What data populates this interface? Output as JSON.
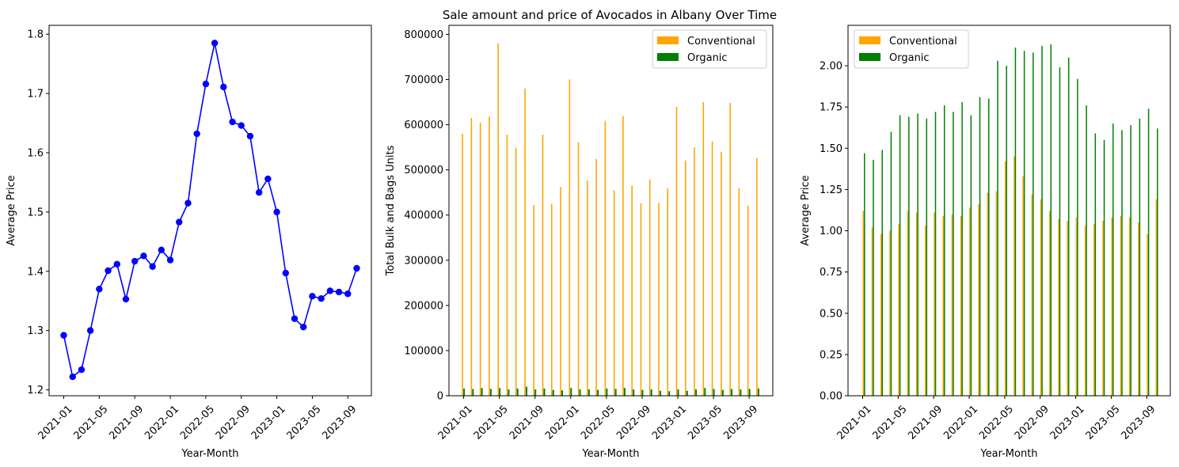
{
  "figure_title": "Sale amount and price of Avocados in Albany Over Time",
  "colors": {
    "line": "#0000ff",
    "conventional": "#ffa500",
    "organic": "#008000"
  },
  "chart_data": [
    {
      "type": "line",
      "title": "",
      "xlabel": "Year-Month",
      "ylabel": "Average Price",
      "ylim": [
        1.19,
        1.815
      ],
      "yticks": [
        "1.2",
        "1.3",
        "1.4",
        "1.5",
        "1.6",
        "1.7",
        "1.8"
      ],
      "xtick_labels": [
        "2021-01",
        "2021-05",
        "2021-09",
        "2022-01",
        "2022-05",
        "2022-09",
        "2023-01",
        "2023-05",
        "2023-09"
      ],
      "x": [
        "2021-01",
        "2021-02",
        "2021-03",
        "2021-04",
        "2021-05",
        "2021-06",
        "2021-07",
        "2021-08",
        "2021-09",
        "2021-10",
        "2021-11",
        "2021-12",
        "2022-01",
        "2022-02",
        "2022-03",
        "2022-04",
        "2022-05",
        "2022-06",
        "2022-07",
        "2022-08",
        "2022-09",
        "2022-10",
        "2022-11",
        "2022-12",
        "2023-01",
        "2023-02",
        "2023-03",
        "2023-04",
        "2023-05",
        "2023-06",
        "2023-07",
        "2023-08",
        "2023-09",
        "2023-10"
      ],
      "series": [
        {
          "name": "",
          "values": [
            1.292,
            1.222,
            1.234,
            1.3,
            1.37,
            1.401,
            1.412,
            1.353,
            1.417,
            1.426,
            1.408,
            1.436,
            1.419,
            1.483,
            1.515,
            1.632,
            1.716,
            1.785,
            1.711,
            1.652,
            1.646,
            1.628,
            1.533,
            1.556,
            1.5,
            1.397,
            1.32,
            1.306,
            1.358,
            1.354,
            1.367,
            1.365,
            1.362,
            1.405
          ]
        }
      ],
      "grid": false
    },
    {
      "type": "bar",
      "title": "",
      "xlabel": "Year-Month",
      "ylabel": "Total Bulk and Bags Units",
      "ylim": [
        0,
        820000
      ],
      "yticks": [
        "0",
        "100000",
        "200000",
        "300000",
        "400000",
        "500000",
        "600000",
        "700000",
        "800000"
      ],
      "xtick_labels": [
        "2021-01",
        "2021-05",
        "2021-09",
        "2022-01",
        "2022-05",
        "2022-09",
        "2023-01",
        "2023-05",
        "2023-09"
      ],
      "legend": "top-right",
      "series": [
        {
          "name": "Conventional",
          "values": [
            580000,
            615000,
            605000,
            618000,
            780000,
            578000,
            549000,
            680000,
            422000,
            578000,
            425000,
            462000,
            700000,
            561000,
            476000,
            524000,
            609000,
            455000,
            619000,
            465000,
            426000,
            479000,
            427000,
            459000,
            640000,
            521000,
            550000,
            650000,
            563000,
            540000,
            648000,
            459000,
            421000,
            526000
          ]
        },
        {
          "name": "Organic",
          "values": [
            16000,
            15000,
            17000,
            15000,
            17000,
            14000,
            16000,
            20000,
            14000,
            16000,
            13000,
            12000,
            17000,
            14000,
            14000,
            13000,
            16000,
            15000,
            17000,
            14000,
            13000,
            14000,
            11000,
            10000,
            14000,
            11000,
            14000,
            17000,
            15000,
            13000,
            15000,
            14000,
            15000,
            16000
          ]
        }
      ],
      "grid": false
    },
    {
      "type": "bar",
      "title": "",
      "xlabel": "Year-Month",
      "ylabel": "Average Price",
      "ylim": [
        0,
        2.245
      ],
      "yticks": [
        "0.00",
        "0.25",
        "0.50",
        "0.75",
        "1.00",
        "1.25",
        "1.50",
        "1.75",
        "2.00"
      ],
      "xtick_labels": [
        "2021-01",
        "2021-05",
        "2021-09",
        "2022-01",
        "2022-05",
        "2022-09",
        "2023-01",
        "2023-05",
        "2023-09"
      ],
      "legend": "top-left",
      "series": [
        {
          "name": "Conventional",
          "values": [
            1.12,
            1.02,
            0.98,
            1.0,
            1.04,
            1.12,
            1.11,
            1.03,
            1.11,
            1.09,
            1.1,
            1.09,
            1.14,
            1.16,
            1.23,
            1.24,
            1.42,
            1.45,
            1.33,
            1.22,
            1.19,
            1.12,
            1.07,
            1.06,
            1.08,
            1.03,
            1.04,
            1.06,
            1.08,
            1.09,
            1.08,
            1.05,
            0.98,
            1.19
          ]
        },
        {
          "name": "Organic",
          "values": [
            1.47,
            1.43,
            1.49,
            1.6,
            1.7,
            1.69,
            1.71,
            1.68,
            1.72,
            1.76,
            1.72,
            1.78,
            1.7,
            1.81,
            1.8,
            2.03,
            2.0,
            2.11,
            2.09,
            2.08,
            2.12,
            2.13,
            1.99,
            2.05,
            1.92,
            1.76,
            1.59,
            1.55,
            1.65,
            1.61,
            1.64,
            1.68,
            1.74,
            1.62
          ]
        }
      ],
      "grid": false
    }
  ]
}
